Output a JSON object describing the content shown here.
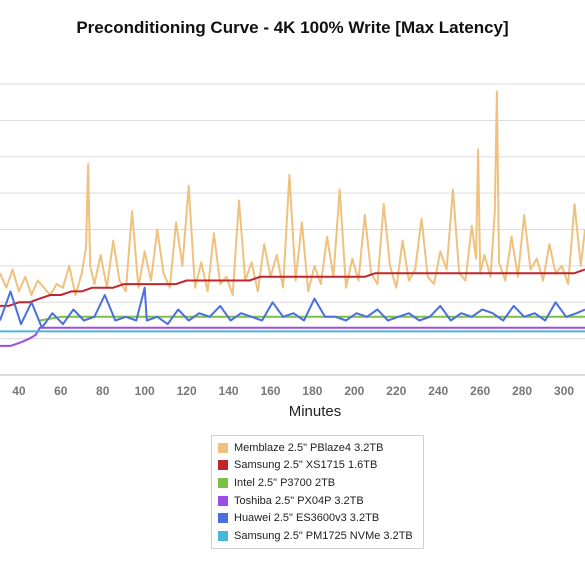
{
  "chart_data": {
    "type": "line",
    "title": "Preconditioning Curve - 4K 100% Write [Max Latency]",
    "xlabel": "Minutes",
    "ylabel": "",
    "xlim": [
      31,
      310
    ],
    "ylim": [
      0,
      88
    ],
    "x_ticks": [
      40,
      60,
      80,
      100,
      120,
      140,
      160,
      180,
      200,
      220,
      240,
      260,
      280,
      300
    ],
    "y_gridlines": [
      10,
      20,
      30,
      40,
      50,
      60,
      70,
      80
    ],
    "grid": true,
    "legend_position": "bottom-center",
    "series": [
      {
        "name": "Memblaze 2.5\" PBlaze4 3.2TB",
        "color": "#efc17e",
        "x": [
          31,
          34,
          37,
          40,
          43,
          46,
          49,
          52,
          55,
          58,
          61,
          64,
          67,
          70,
          72,
          73,
          74,
          76,
          79,
          82,
          85,
          88,
          91,
          94,
          97,
          100,
          103,
          106,
          109,
          112,
          115,
          118,
          121,
          124,
          127,
          130,
          133,
          136,
          139,
          142,
          145,
          148,
          151,
          154,
          157,
          160,
          163,
          166,
          169,
          172,
          175,
          178,
          181,
          184,
          187,
          190,
          193,
          196,
          199,
          202,
          205,
          208,
          211,
          214,
          217,
          220,
          223,
          226,
          229,
          232,
          235,
          238,
          241,
          244,
          247,
          250,
          253,
          256,
          258,
          259,
          260,
          262,
          265,
          267,
          268,
          269,
          272,
          275,
          278,
          281,
          284,
          287,
          290,
          293,
          296,
          299,
          302,
          305,
          308,
          310
        ],
        "values": [
          28,
          24,
          29,
          23,
          27,
          22,
          26,
          24,
          22,
          25,
          24,
          30,
          22,
          28,
          35,
          58,
          30,
          25,
          33,
          24,
          37,
          26,
          23,
          45,
          24,
          34,
          26,
          40,
          28,
          24,
          42,
          30,
          52,
          24,
          31,
          23,
          39,
          25,
          27,
          22,
          48,
          26,
          31,
          23,
          36,
          27,
          33,
          24,
          55,
          26,
          42,
          23,
          30,
          25,
          38,
          27,
          51,
          24,
          32,
          26,
          44,
          28,
          25,
          47,
          30,
          24,
          37,
          26,
          29,
          43,
          27,
          25,
          34,
          29,
          51,
          28,
          26,
          41,
          32,
          62,
          28,
          33,
          27,
          45,
          78,
          31,
          26,
          38,
          27,
          44,
          29,
          32,
          26,
          36,
          28,
          30,
          25,
          47,
          30,
          40
        ]
      },
      {
        "name": "Samsung 2.5\" XS1715 1.6TB",
        "color": "#c0272d",
        "x": [
          31,
          35,
          40,
          45,
          50,
          55,
          60,
          65,
          70,
          75,
          80,
          85,
          90,
          95,
          100,
          105,
          110,
          115,
          120,
          125,
          130,
          135,
          140,
          145,
          150,
          155,
          160,
          165,
          170,
          175,
          180,
          185,
          190,
          195,
          200,
          205,
          210,
          215,
          220,
          225,
          230,
          235,
          240,
          245,
          250,
          255,
          260,
          265,
          270,
          275,
          280,
          285,
          290,
          295,
          300,
          305,
          310
        ],
        "values": [
          19,
          19,
          20,
          20,
          21,
          22,
          22,
          23,
          23,
          24,
          24,
          24,
          25,
          25,
          25,
          25,
          25,
          25,
          26,
          26,
          26,
          26,
          26,
          26,
          26,
          27,
          27,
          27,
          27,
          27,
          27,
          27,
          27,
          27,
          27,
          27,
          28,
          28,
          28,
          28,
          28,
          28,
          28,
          28,
          28,
          28,
          28,
          28,
          28,
          28,
          28,
          28,
          28,
          28,
          28,
          28,
          29
        ]
      },
      {
        "name": "Intel 2.5\" P3700 2TB",
        "color": "#7cc242",
        "x": [
          50,
          60,
          70,
          80,
          90,
          100,
          110,
          120,
          130,
          140,
          150,
          160,
          170,
          180,
          190,
          200,
          210,
          220,
          230,
          240,
          250,
          260,
          270,
          280,
          290,
          300,
          310
        ],
        "values": [
          15,
          16,
          16,
          16,
          16,
          16,
          16,
          16,
          16,
          16,
          16,
          16,
          16,
          16,
          16,
          16,
          16,
          16,
          16,
          16,
          16,
          16,
          16,
          16,
          16,
          16,
          16
        ]
      },
      {
        "name": "Toshiba 2.5\" PX04P 3.2TB",
        "color": "#9d4ce6",
        "x": [
          31,
          36,
          41,
          45,
          48,
          50,
          55,
          60,
          70,
          80,
          90,
          100,
          110,
          120,
          130,
          140,
          150,
          160,
          170,
          180,
          190,
          200,
          210,
          220,
          230,
          240,
          250,
          260,
          270,
          280,
          290,
          300,
          310
        ],
        "values": [
          8,
          8,
          9,
          10,
          11,
          13,
          13,
          13,
          13,
          13,
          13,
          13,
          13,
          13,
          13,
          13,
          13,
          13,
          13,
          13,
          13,
          13,
          13,
          13,
          13,
          13,
          13,
          13,
          13,
          13,
          13,
          13,
          13
        ]
      },
      {
        "name": "Huawei 2.5\" ES3600v3 3.2TB",
        "color": "#4a6fde",
        "x": [
          31,
          36,
          41,
          46,
          51,
          56,
          61,
          66,
          71,
          76,
          81,
          86,
          91,
          96,
          100,
          101,
          106,
          111,
          116,
          121,
          126,
          131,
          136,
          141,
          146,
          151,
          156,
          161,
          166,
          171,
          176,
          181,
          186,
          191,
          196,
          201,
          206,
          211,
          216,
          221,
          226,
          231,
          236,
          241,
          246,
          251,
          256,
          261,
          266,
          271,
          276,
          281,
          286,
          291,
          296,
          301,
          306,
          310
        ],
        "values": [
          15,
          23,
          14,
          20,
          13,
          17,
          14,
          18,
          15,
          16,
          22,
          15,
          16,
          15,
          24,
          15,
          16,
          14,
          18,
          15,
          17,
          16,
          19,
          15,
          17,
          16,
          15,
          20,
          16,
          17,
          15,
          21,
          16,
          16,
          15,
          17,
          16,
          18,
          15,
          16,
          17,
          15,
          16,
          19,
          15,
          17,
          16,
          18,
          17,
          15,
          19,
          16,
          17,
          15,
          20,
          16,
          17,
          18
        ]
      },
      {
        "name": "Samsung 2.5\" PM1725 NVMe 3.2TB",
        "color": "#49b6d9",
        "x": [
          31,
          35,
          40,
          45,
          50,
          60,
          70,
          80,
          90,
          100,
          110,
          120,
          130,
          140,
          150,
          160,
          170,
          180,
          190,
          200,
          210,
          220,
          230,
          240,
          250,
          260,
          270,
          280,
          290,
          300,
          310
        ],
        "values": [
          12,
          12,
          12,
          12,
          12,
          12,
          12,
          12,
          12,
          12,
          12,
          12,
          12,
          12,
          12,
          12,
          12,
          12,
          12,
          12,
          12,
          12,
          12,
          12,
          12,
          12,
          12,
          12,
          12,
          12,
          12
        ]
      }
    ]
  }
}
